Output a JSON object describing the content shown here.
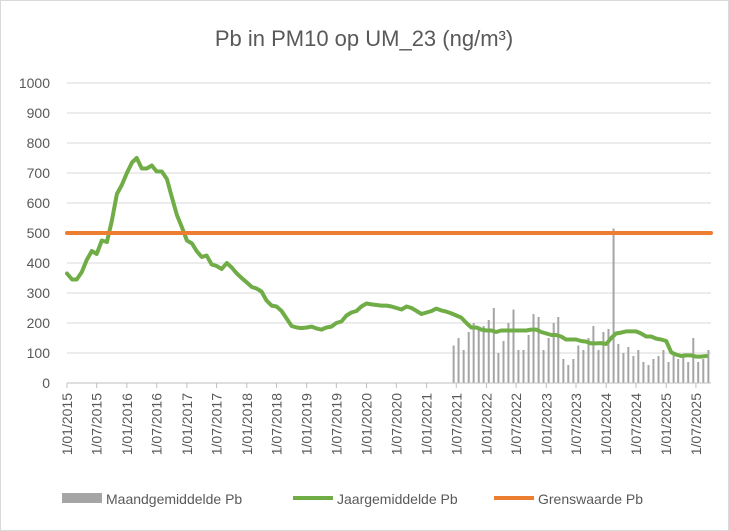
{
  "chart_data": {
    "type": "line",
    "title": "Pb in PM10 op UM_23 (ng/m³)",
    "xlabel": "",
    "ylabel": "",
    "ylim": [
      0,
      1000
    ],
    "yticks": [
      "0",
      "100",
      "200",
      "300",
      "400",
      "500",
      "600",
      "700",
      "800",
      "900",
      "1000"
    ],
    "xlim": [
      "2015-01-01",
      "2025-10-01"
    ],
    "xticks": [
      "1/01/2015",
      "1/07/2015",
      "1/01/2016",
      "1/07/2016",
      "1/01/2017",
      "1/07/2017",
      "1/01/2018",
      "1/07/2018",
      "1/01/2019",
      "1/07/2019",
      "1/01/2020",
      "1/07/2020",
      "1/01/2021",
      "1/07/2021",
      "1/01/2022",
      "1/07/2022",
      "1/01/2023",
      "1/07/2023",
      "1/01/2024",
      "1/07/2024",
      "1/01/2025",
      "1/07/2025"
    ],
    "grid": true,
    "legend": "bottom",
    "series": [
      {
        "name": "Maandgemiddelde Pb",
        "kind": "bar",
        "color": "#a5a5a5",
        "points": [
          [
            "2021-06-15",
            125
          ],
          [
            "2021-07-15",
            150
          ],
          [
            "2021-08-15",
            110
          ],
          [
            "2021-09-15",
            170
          ],
          [
            "2021-10-15",
            200
          ],
          [
            "2021-11-15",
            180
          ],
          [
            "2021-12-15",
            190
          ],
          [
            "2022-01-15",
            210
          ],
          [
            "2022-02-15",
            250
          ],
          [
            "2022-03-15",
            100
          ],
          [
            "2022-04-15",
            140
          ],
          [
            "2022-05-15",
            200
          ],
          [
            "2022-06-15",
            245
          ],
          [
            "2022-07-15",
            110
          ],
          [
            "2022-08-15",
            110
          ],
          [
            "2022-09-15",
            160
          ],
          [
            "2022-10-15",
            230
          ],
          [
            "2022-11-15",
            220
          ],
          [
            "2022-12-15",
            110
          ],
          [
            "2023-01-15",
            150
          ],
          [
            "2023-02-15",
            200
          ],
          [
            "2023-03-15",
            220
          ],
          [
            "2023-04-15",
            80
          ],
          [
            "2023-05-15",
            60
          ],
          [
            "2023-06-15",
            80
          ],
          [
            "2023-07-15",
            125
          ],
          [
            "2023-08-15",
            110
          ],
          [
            "2023-09-15",
            150
          ],
          [
            "2023-10-15",
            190
          ],
          [
            "2023-11-15",
            110
          ],
          [
            "2023-12-15",
            170
          ],
          [
            "2024-01-15",
            180
          ],
          [
            "2024-02-15",
            515
          ],
          [
            "2024-03-15",
            130
          ],
          [
            "2024-04-15",
            100
          ],
          [
            "2024-05-15",
            120
          ],
          [
            "2024-06-15",
            90
          ],
          [
            "2024-07-15",
            110
          ],
          [
            "2024-08-15",
            70
          ],
          [
            "2024-09-15",
            60
          ],
          [
            "2024-10-15",
            80
          ],
          [
            "2024-11-15",
            90
          ],
          [
            "2024-12-15",
            110
          ],
          [
            "2025-01-15",
            70
          ],
          [
            "2025-02-15",
            100
          ],
          [
            "2025-03-15",
            80
          ],
          [
            "2025-04-15",
            90
          ],
          [
            "2025-05-15",
            70
          ],
          [
            "2025-06-15",
            150
          ],
          [
            "2025-07-15",
            70
          ],
          [
            "2025-08-15",
            80
          ],
          [
            "2025-09-15",
            110
          ]
        ]
      },
      {
        "name": "Jaargemiddelde Pb",
        "kind": "line",
        "color": "#70ad47",
        "points": [
          [
            "2015-01-01",
            365
          ],
          [
            "2015-02-01",
            345
          ],
          [
            "2015-03-01",
            345
          ],
          [
            "2015-04-01",
            370
          ],
          [
            "2015-05-01",
            410
          ],
          [
            "2015-06-01",
            440
          ],
          [
            "2015-07-01",
            430
          ],
          [
            "2015-08-01",
            475
          ],
          [
            "2015-09-01",
            470
          ],
          [
            "2015-10-01",
            540
          ],
          [
            "2015-11-01",
            630
          ],
          [
            "2015-12-01",
            660
          ],
          [
            "2016-01-01",
            700
          ],
          [
            "2016-02-01",
            735
          ],
          [
            "2016-03-01",
            750
          ],
          [
            "2016-04-01",
            715
          ],
          [
            "2016-05-01",
            715
          ],
          [
            "2016-06-01",
            725
          ],
          [
            "2016-07-01",
            705
          ],
          [
            "2016-08-01",
            705
          ],
          [
            "2016-09-01",
            680
          ],
          [
            "2016-10-01",
            620
          ],
          [
            "2016-11-01",
            560
          ],
          [
            "2016-12-01",
            520
          ],
          [
            "2017-01-01",
            475
          ],
          [
            "2017-02-01",
            465
          ],
          [
            "2017-03-01",
            440
          ],
          [
            "2017-04-01",
            420
          ],
          [
            "2017-05-01",
            425
          ],
          [
            "2017-06-01",
            395
          ],
          [
            "2017-07-01",
            390
          ],
          [
            "2017-08-01",
            380
          ],
          [
            "2017-09-01",
            400
          ],
          [
            "2017-10-01",
            385
          ],
          [
            "2017-11-01",
            365
          ],
          [
            "2017-12-01",
            350
          ],
          [
            "2018-01-01",
            335
          ],
          [
            "2018-02-01",
            320
          ],
          [
            "2018-03-01",
            315
          ],
          [
            "2018-04-01",
            305
          ],
          [
            "2018-05-01",
            275
          ],
          [
            "2018-06-01",
            258
          ],
          [
            "2018-07-01",
            255
          ],
          [
            "2018-08-01",
            240
          ],
          [
            "2018-09-01",
            215
          ],
          [
            "2018-10-01",
            190
          ],
          [
            "2018-11-01",
            185
          ],
          [
            "2018-12-01",
            183
          ],
          [
            "2019-01-01",
            185
          ],
          [
            "2019-02-01",
            188
          ],
          [
            "2019-03-01",
            182
          ],
          [
            "2019-04-01",
            178
          ],
          [
            "2019-05-01",
            185
          ],
          [
            "2019-06-01",
            188
          ],
          [
            "2019-07-01",
            200
          ],
          [
            "2019-08-01",
            205
          ],
          [
            "2019-09-01",
            225
          ],
          [
            "2019-10-01",
            235
          ],
          [
            "2019-11-01",
            240
          ],
          [
            "2019-12-01",
            255
          ],
          [
            "2020-01-01",
            265
          ],
          [
            "2020-02-01",
            262
          ],
          [
            "2020-03-01",
            260
          ],
          [
            "2020-04-01",
            258
          ],
          [
            "2020-05-01",
            258
          ],
          [
            "2020-06-01",
            255
          ],
          [
            "2020-07-01",
            250
          ],
          [
            "2020-08-01",
            245
          ],
          [
            "2020-09-01",
            255
          ],
          [
            "2020-10-01",
            250
          ],
          [
            "2020-11-01",
            240
          ],
          [
            "2020-12-01",
            230
          ],
          [
            "2021-01-01",
            235
          ],
          [
            "2021-02-01",
            240
          ],
          [
            "2021-03-01",
            248
          ],
          [
            "2021-04-01",
            242
          ],
          [
            "2021-05-01",
            238
          ],
          [
            "2021-06-01",
            232
          ],
          [
            "2021-07-01",
            225
          ],
          [
            "2021-08-01",
            218
          ],
          [
            "2021-09-01",
            200
          ],
          [
            "2021-10-01",
            185
          ],
          [
            "2021-11-01",
            185
          ],
          [
            "2021-12-01",
            178
          ],
          [
            "2022-01-01",
            175
          ],
          [
            "2022-02-01",
            175
          ],
          [
            "2022-03-01",
            170
          ],
          [
            "2022-04-01",
            175
          ],
          [
            "2022-05-01",
            175
          ],
          [
            "2022-06-01",
            175
          ],
          [
            "2022-07-01",
            175
          ],
          [
            "2022-08-01",
            175
          ],
          [
            "2022-09-01",
            175
          ],
          [
            "2022-10-01",
            178
          ],
          [
            "2022-11-01",
            178
          ],
          [
            "2022-12-01",
            170
          ],
          [
            "2023-01-01",
            165
          ],
          [
            "2023-02-01",
            160
          ],
          [
            "2023-03-01",
            160
          ],
          [
            "2023-04-01",
            155
          ],
          [
            "2023-05-01",
            145
          ],
          [
            "2023-06-01",
            145
          ],
          [
            "2023-07-01",
            145
          ],
          [
            "2023-08-01",
            140
          ],
          [
            "2023-09-01",
            138
          ],
          [
            "2023-10-01",
            132
          ],
          [
            "2023-11-01",
            132
          ],
          [
            "2023-12-01",
            133
          ],
          [
            "2024-01-01",
            130
          ],
          [
            "2024-02-01",
            150
          ],
          [
            "2024-03-01",
            165
          ],
          [
            "2024-04-01",
            168
          ],
          [
            "2024-05-01",
            172
          ],
          [
            "2024-06-01",
            172
          ],
          [
            "2024-07-01",
            172
          ],
          [
            "2024-08-01",
            165
          ],
          [
            "2024-09-01",
            155
          ],
          [
            "2024-10-01",
            155
          ],
          [
            "2024-11-01",
            148
          ],
          [
            "2024-12-01",
            145
          ],
          [
            "2025-01-01",
            140
          ],
          [
            "2025-02-01",
            102
          ],
          [
            "2025-03-01",
            95
          ],
          [
            "2025-04-01",
            90
          ],
          [
            "2025-05-01",
            92
          ],
          [
            "2025-06-01",
            92
          ],
          [
            "2025-07-01",
            88
          ],
          [
            "2025-08-01",
            88
          ],
          [
            "2025-09-01",
            90
          ]
        ]
      },
      {
        "name": "Grenswaarde Pb",
        "kind": "line",
        "color": "#ed7d31",
        "points": [
          [
            "2015-01-01",
            500
          ],
          [
            "2025-10-01",
            500
          ]
        ]
      }
    ]
  }
}
